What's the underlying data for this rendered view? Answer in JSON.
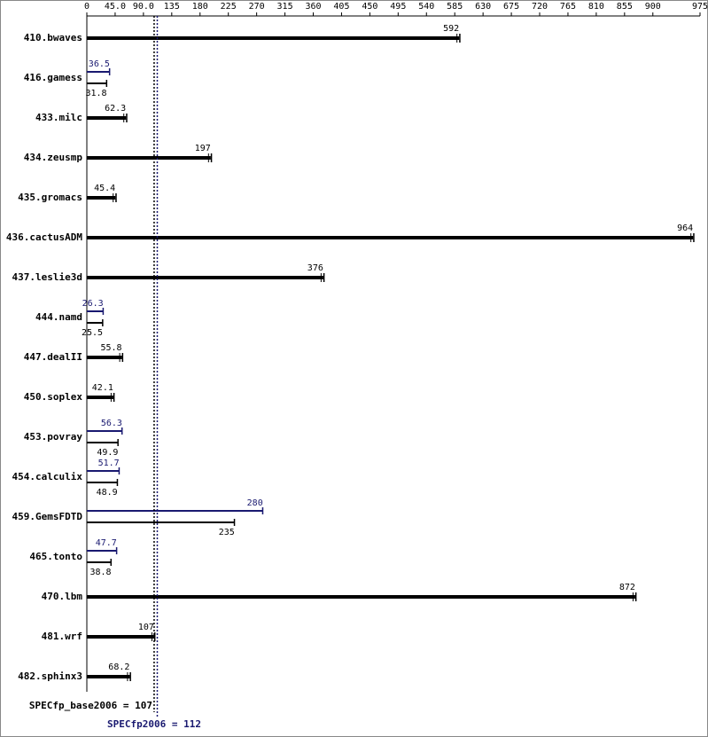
{
  "chart_data": {
    "type": "bar",
    "orientation": "horizontal",
    "categories": [
      "410.bwaves",
      "416.gamess",
      "433.milc",
      "434.zeusmp",
      "435.gromacs",
      "436.cactusADM",
      "437.leslie3d",
      "444.namd",
      "447.dealII",
      "450.soplex",
      "453.povray",
      "454.calculix",
      "459.GemsFDTD",
      "465.tonto",
      "470.lbm",
      "481.wrf",
      "482.sphinx3"
    ],
    "series": [
      {
        "color": "#000000",
        "values": [
          592,
          31.8,
          62.3,
          197,
          45.4,
          964,
          376,
          25.5,
          55.8,
          42.1,
          49.9,
          48.9,
          235,
          38.8,
          872,
          107,
          68.2
        ]
      },
      {
        "color": "#191970",
        "values": [
          null,
          36.5,
          null,
          null,
          null,
          null,
          null,
          26.3,
          null,
          null,
          56.3,
          51.7,
          280,
          47.7,
          null,
          null,
          null
        ]
      }
    ],
    "xlim": [
      0,
      975
    ],
    "xticks": [
      0,
      {
        "value": 45,
        "label": "45.0"
      },
      {
        "value": 90,
        "label": "90.0"
      },
      135,
      180,
      225,
      270,
      315,
      360,
      405,
      450,
      495,
      540,
      585,
      630,
      675,
      720,
      765,
      810,
      855,
      900,
      975
    ],
    "reference_lines": [
      {
        "label": "SPECfp_base2006 = 107",
        "value": 107,
        "color": "#000000"
      },
      {
        "label": "SPECfp2006 = 112",
        "value": 112,
        "color": "#191970"
      }
    ]
  }
}
